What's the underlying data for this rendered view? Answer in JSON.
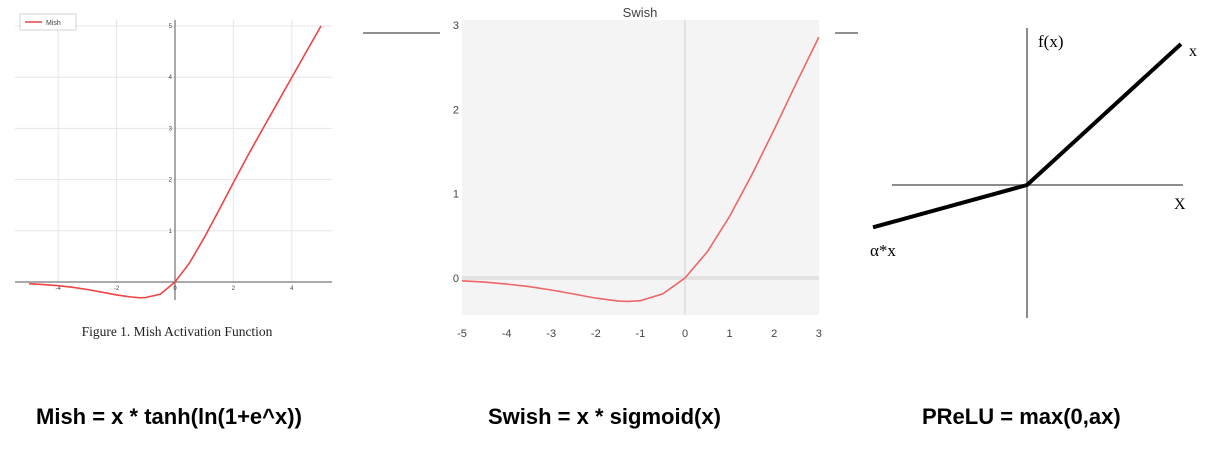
{
  "chart_data": [
    {
      "type": "line",
      "caption": "Figure 1.  Mish Activation Function",
      "legend": [
        "Mish"
      ],
      "legend_position": "top-left",
      "xlim": [
        -5.2,
        5.1
      ],
      "ylim": [
        -0.35,
        5.1
      ],
      "x_ticks": [
        "-4",
        "-2",
        "0",
        "2",
        "4"
      ],
      "y_ticks": [
        "1",
        "2",
        "3",
        "4",
        "5"
      ],
      "grid": true,
      "series": [
        {
          "name": "Mish",
          "color": "#ee4444",
          "x": [
            -5,
            -4.5,
            -4,
            -3.5,
            -3,
            -2.5,
            -2,
            -1.5,
            -1.19,
            -1,
            -0.5,
            0,
            0.5,
            1,
            1.5,
            2,
            2.5,
            3,
            3.5,
            4,
            4.5,
            5
          ],
          "y": [
            -0.034,
            -0.05,
            -0.073,
            -0.104,
            -0.146,
            -0.2,
            -0.252,
            -0.293,
            -0.309,
            -0.303,
            -0.236,
            0,
            0.375,
            0.865,
            1.397,
            1.944,
            2.477,
            2.987,
            3.49,
            3.997,
            4.5,
            5.0
          ]
        }
      ]
    },
    {
      "type": "line",
      "title": "Swish",
      "xlim": [
        -5,
        3
      ],
      "ylim": [
        -0.4,
        3
      ],
      "x_ticks": [
        "-5",
        "-4",
        "-3",
        "-2",
        "-1",
        "0",
        "1",
        "2",
        "3"
      ],
      "y_ticks": [
        "0",
        "1",
        "2",
        "3"
      ],
      "background": "#f4f4f4",
      "series": [
        {
          "color": "#ee6666",
          "x": [
            -5,
            -4.5,
            -4,
            -3.5,
            -3,
            -2.5,
            -2,
            -1.5,
            -1.28,
            -1,
            -0.5,
            0,
            0.5,
            1,
            1.5,
            2,
            2.5,
            3
          ],
          "y": [
            -0.033,
            -0.049,
            -0.072,
            -0.102,
            -0.142,
            -0.19,
            -0.238,
            -0.274,
            -0.278,
            -0.269,
            -0.189,
            0,
            0.311,
            0.731,
            1.227,
            1.762,
            2.317,
            2.858
          ]
        }
      ]
    },
    {
      "type": "line",
      "y_axis_label": "f(x)",
      "x_axis_label": "X",
      "x_line_label": "x",
      "neg_line_label": "α*x",
      "xlim": [
        -1,
        1
      ],
      "ylim": [
        -1,
        1
      ],
      "series": [
        {
          "color": "#000000",
          "x": [
            -1,
            0,
            1
          ],
          "y": [
            -0.3,
            0,
            1
          ]
        }
      ]
    }
  ],
  "formulas": {
    "mish": "Mish = x * tanh(ln(1+e^x))",
    "swish": "Swish = x * sigmoid(x)",
    "prelu": "PReLU  = max(0,ax)"
  }
}
